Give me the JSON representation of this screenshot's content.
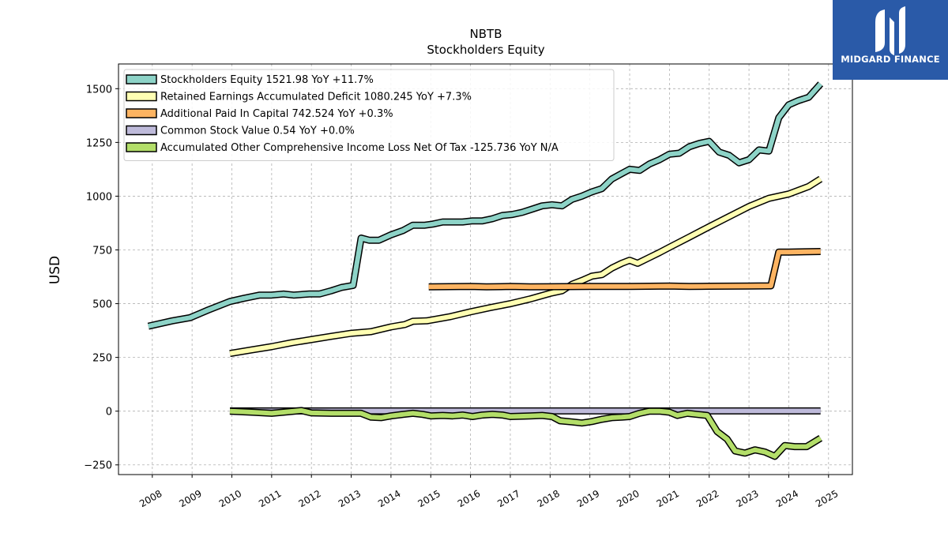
{
  "brand": {
    "name": "MIDGARD FINANCE"
  },
  "chart_data": {
    "type": "line",
    "title": "NBTB",
    "subtitle": "Stockholders  Equity",
    "ylabel": "USD",
    "xlabel": "",
    "xlim": [
      2007.15,
      2025.6
    ],
    "ylim": [
      -295,
      1615
    ],
    "x_ticks": [
      2008,
      2009,
      2010,
      2011,
      2012,
      2013,
      2014,
      2015,
      2016,
      2017,
      2018,
      2019,
      2020,
      2021,
      2022,
      2023,
      2024,
      2025
    ],
    "y_ticks": [
      -250,
      0,
      250,
      500,
      750,
      1000,
      1250,
      1500
    ],
    "grid": true,
    "legend_position": "top-left",
    "series": [
      {
        "name": "Stockholders Equity",
        "legend": "Stockholders Equity  1521.98 YoY +11.7%",
        "color": "#8dd3c7",
        "points": [
          [
            2007.9,
            395
          ],
          [
            2008.5,
            420
          ],
          [
            2008.95,
            435
          ],
          [
            2009.4,
            470
          ],
          [
            2009.95,
            510
          ],
          [
            2010.3,
            525
          ],
          [
            2010.7,
            540
          ],
          [
            2011.0,
            540
          ],
          [
            2011.3,
            545
          ],
          [
            2011.55,
            540
          ],
          [
            2011.95,
            545
          ],
          [
            2012.2,
            545
          ],
          [
            2012.5,
            560
          ],
          [
            2012.75,
            575
          ],
          [
            2013.05,
            585
          ],
          [
            2013.25,
            805
          ],
          [
            2013.45,
            795
          ],
          [
            2013.7,
            795
          ],
          [
            2014.0,
            820
          ],
          [
            2014.3,
            840
          ],
          [
            2014.55,
            865
          ],
          [
            2014.85,
            865
          ],
          [
            2015.05,
            870
          ],
          [
            2015.3,
            880
          ],
          [
            2015.55,
            880
          ],
          [
            2015.8,
            880
          ],
          [
            2016.05,
            885
          ],
          [
            2016.3,
            885
          ],
          [
            2016.55,
            895
          ],
          [
            2016.8,
            910
          ],
          [
            2017.05,
            915
          ],
          [
            2017.3,
            925
          ],
          [
            2017.55,
            940
          ],
          [
            2017.8,
            955
          ],
          [
            2018.05,
            960
          ],
          [
            2018.3,
            955
          ],
          [
            2018.55,
            985
          ],
          [
            2018.8,
            1000
          ],
          [
            2019.05,
            1020
          ],
          [
            2019.3,
            1035
          ],
          [
            2019.55,
            1080
          ],
          [
            2019.8,
            1105
          ],
          [
            2020.0,
            1125
          ],
          [
            2020.25,
            1120
          ],
          [
            2020.5,
            1150
          ],
          [
            2020.75,
            1170
          ],
          [
            2021.0,
            1195
          ],
          [
            2021.25,
            1200
          ],
          [
            2021.5,
            1230
          ],
          [
            2021.75,
            1245
          ],
          [
            2022.0,
            1255
          ],
          [
            2022.25,
            1205
          ],
          [
            2022.5,
            1190
          ],
          [
            2022.75,
            1155
          ],
          [
            2023.0,
            1170
          ],
          [
            2023.25,
            1215
          ],
          [
            2023.5,
            1210
          ],
          [
            2023.75,
            1365
          ],
          [
            2024.0,
            1425
          ],
          [
            2024.25,
            1445
          ],
          [
            2024.5,
            1460
          ],
          [
            2024.8,
            1522
          ]
        ]
      },
      {
        "name": "Retained Earnings Accumulated Deficit",
        "legend": "Retained Earnings Accumulated Deficit  1080.245 YoY +7.3%",
        "color": "#ffffb3",
        "points": [
          [
            2009.95,
            268
          ],
          [
            2010.5,
            285
          ],
          [
            2011.0,
            300
          ],
          [
            2011.5,
            318
          ],
          [
            2012.0,
            333
          ],
          [
            2012.5,
            348
          ],
          [
            2013.0,
            362
          ],
          [
            2013.5,
            370
          ],
          [
            2014.0,
            392
          ],
          [
            2014.35,
            403
          ],
          [
            2014.55,
            418
          ],
          [
            2014.9,
            420
          ],
          [
            2015.5,
            440
          ],
          [
            2016.0,
            462
          ],
          [
            2016.5,
            482
          ],
          [
            2017.0,
            500
          ],
          [
            2017.5,
            522
          ],
          [
            2018.0,
            548
          ],
          [
            2018.3,
            560
          ],
          [
            2018.55,
            590
          ],
          [
            2018.8,
            608
          ],
          [
            2019.05,
            628
          ],
          [
            2019.3,
            635
          ],
          [
            2019.55,
            665
          ],
          [
            2019.8,
            688
          ],
          [
            2020.0,
            702
          ],
          [
            2020.2,
            688
          ],
          [
            2020.5,
            715
          ],
          [
            2020.75,
            738
          ],
          [
            2021.0,
            762
          ],
          [
            2021.5,
            810
          ],
          [
            2022.0,
            858
          ],
          [
            2022.5,
            905
          ],
          [
            2023.0,
            952
          ],
          [
            2023.5,
            990
          ],
          [
            2024.0,
            1010
          ],
          [
            2024.5,
            1045
          ],
          [
            2024.8,
            1080
          ]
        ]
      },
      {
        "name": "Additional Paid In Capital",
        "legend": "Additional Paid In Capital  742.524 YoY +0.3%",
        "color": "#fdb462",
        "points": [
          [
            2014.95,
            578
          ],
          [
            2016.0,
            580
          ],
          [
            2016.4,
            578
          ],
          [
            2017.0,
            580
          ],
          [
            2017.5,
            578
          ],
          [
            2018.0,
            579
          ],
          [
            2019.0,
            580
          ],
          [
            2020.0,
            580
          ],
          [
            2021.0,
            582
          ],
          [
            2021.5,
            580
          ],
          [
            2022.0,
            581
          ],
          [
            2023.0,
            582
          ],
          [
            2023.55,
            583
          ],
          [
            2023.75,
            740
          ],
          [
            2024.0,
            740
          ],
          [
            2024.8,
            742.5
          ]
        ]
      },
      {
        "name": "Common Stock Value",
        "legend": "Common Stock Value  0.54 YoY +0.0%",
        "color": "#bebada",
        "points": [
          [
            2009.95,
            1
          ],
          [
            2024.8,
            1
          ]
        ]
      },
      {
        "name": "Accumulated Other Comprehensive Income Loss Net Of Tax",
        "legend": "Accumulated Other Comprehensive Income Loss Net Of Tax  -125.736 YoY N/A",
        "color": "#b3de69",
        "points": [
          [
            2009.95,
            0
          ],
          [
            2010.5,
            -5
          ],
          [
            2011.0,
            -10
          ],
          [
            2011.3,
            -5
          ],
          [
            2011.75,
            3
          ],
          [
            2012.0,
            -8
          ],
          [
            2012.5,
            -10
          ],
          [
            2013.0,
            -10
          ],
          [
            2013.25,
            -10
          ],
          [
            2013.5,
            -28
          ],
          [
            2013.75,
            -30
          ],
          [
            2014.0,
            -22
          ],
          [
            2014.3,
            -15
          ],
          [
            2014.55,
            -10
          ],
          [
            2014.8,
            -15
          ],
          [
            2015.0,
            -22
          ],
          [
            2015.3,
            -20
          ],
          [
            2015.55,
            -22
          ],
          [
            2015.8,
            -18
          ],
          [
            2016.05,
            -25
          ],
          [
            2016.3,
            -18
          ],
          [
            2016.55,
            -15
          ],
          [
            2016.8,
            -18
          ],
          [
            2017.0,
            -25
          ],
          [
            2017.5,
            -22
          ],
          [
            2017.8,
            -20
          ],
          [
            2018.05,
            -25
          ],
          [
            2018.25,
            -45
          ],
          [
            2018.55,
            -50
          ],
          [
            2018.8,
            -55
          ],
          [
            2019.05,
            -48
          ],
          [
            2019.3,
            -38
          ],
          [
            2019.55,
            -30
          ],
          [
            2019.8,
            -28
          ],
          [
            2020.0,
            -25
          ],
          [
            2020.25,
            -10
          ],
          [
            2020.5,
            0
          ],
          [
            2020.75,
            0
          ],
          [
            2021.0,
            -5
          ],
          [
            2021.2,
            -20
          ],
          [
            2021.45,
            -10
          ],
          [
            2021.7,
            -15
          ],
          [
            2021.95,
            -20
          ],
          [
            2022.2,
            -95
          ],
          [
            2022.45,
            -130
          ],
          [
            2022.65,
            -185
          ],
          [
            2022.9,
            -195
          ],
          [
            2023.15,
            -180
          ],
          [
            2023.4,
            -190
          ],
          [
            2023.65,
            -210
          ],
          [
            2023.9,
            -160
          ],
          [
            2024.15,
            -165
          ],
          [
            2024.45,
            -165
          ],
          [
            2024.8,
            -125.7
          ]
        ]
      }
    ]
  }
}
